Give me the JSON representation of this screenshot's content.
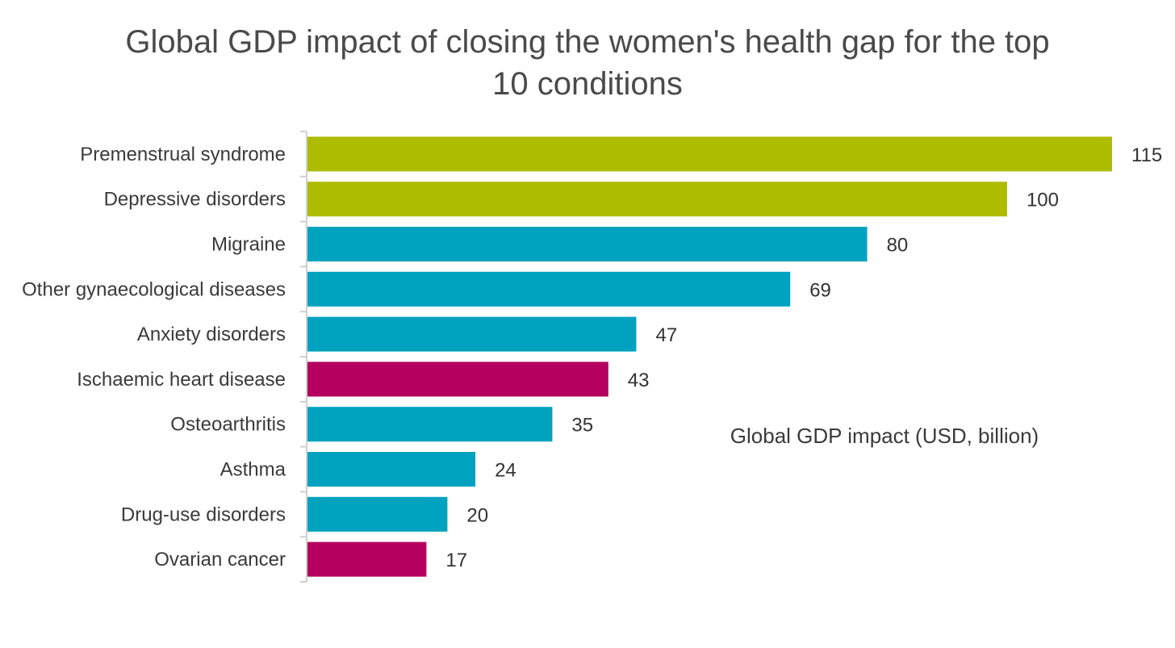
{
  "chart_data": {
    "type": "bar",
    "orientation": "horizontal",
    "title_lines": [
      "Global GDP impact of closing the women's health gap for the top",
      "10 conditions"
    ],
    "value_axis_label": "Global GDP impact (USD, billion)",
    "categories": [
      "Premenstrual syndrome",
      "Depressive disorders",
      "Migraine",
      "Other gynaecological diseases",
      "Anxiety disorders",
      "Ischaemic heart disease",
      "Osteoarthritis",
      "Asthma",
      "Drug-use disorders",
      "Ovarian cancer"
    ],
    "values": [
      115,
      100,
      80,
      69,
      47,
      43,
      35,
      24,
      20,
      17
    ],
    "bar_colors": [
      "#aebc00",
      "#aebc00",
      "#00a3bf",
      "#00a3bf",
      "#00a3bf",
      "#b5005f",
      "#00a3bf",
      "#00a3bf",
      "#00a3bf",
      "#b5005f"
    ],
    "xlim": [
      0,
      115
    ],
    "grid": false,
    "legend": "none"
  }
}
